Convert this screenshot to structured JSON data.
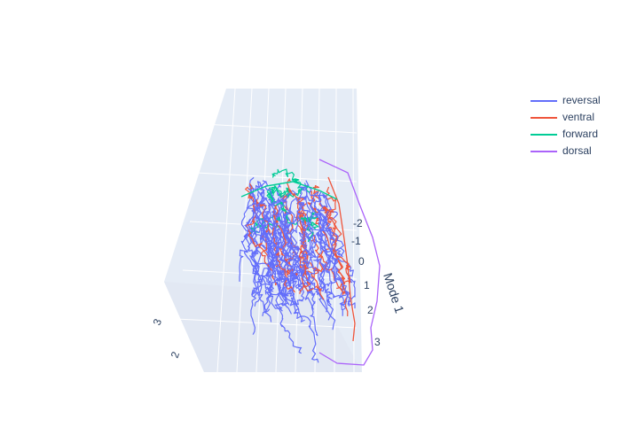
{
  "chart_data": {
    "type": "line3d",
    "legend_placement": "top-right",
    "grid": true,
    "background_color": "#e5ecf6",
    "series": [
      {
        "name": "reversal",
        "color": "#636efa"
      },
      {
        "name": "ventral",
        "color": "#ef553b"
      },
      {
        "name": "forward",
        "color": "#00cc96"
      },
      {
        "name": "dorsal",
        "color": "#ab63fa"
      }
    ],
    "axes": {
      "mode1": {
        "title": "Mode 1",
        "ticks": [
          "-2",
          "-1",
          "0",
          "1",
          "2",
          "3"
        ]
      },
      "left": {
        "title": "",
        "ticks": [
          "3",
          "2"
        ]
      }
    }
  }
}
